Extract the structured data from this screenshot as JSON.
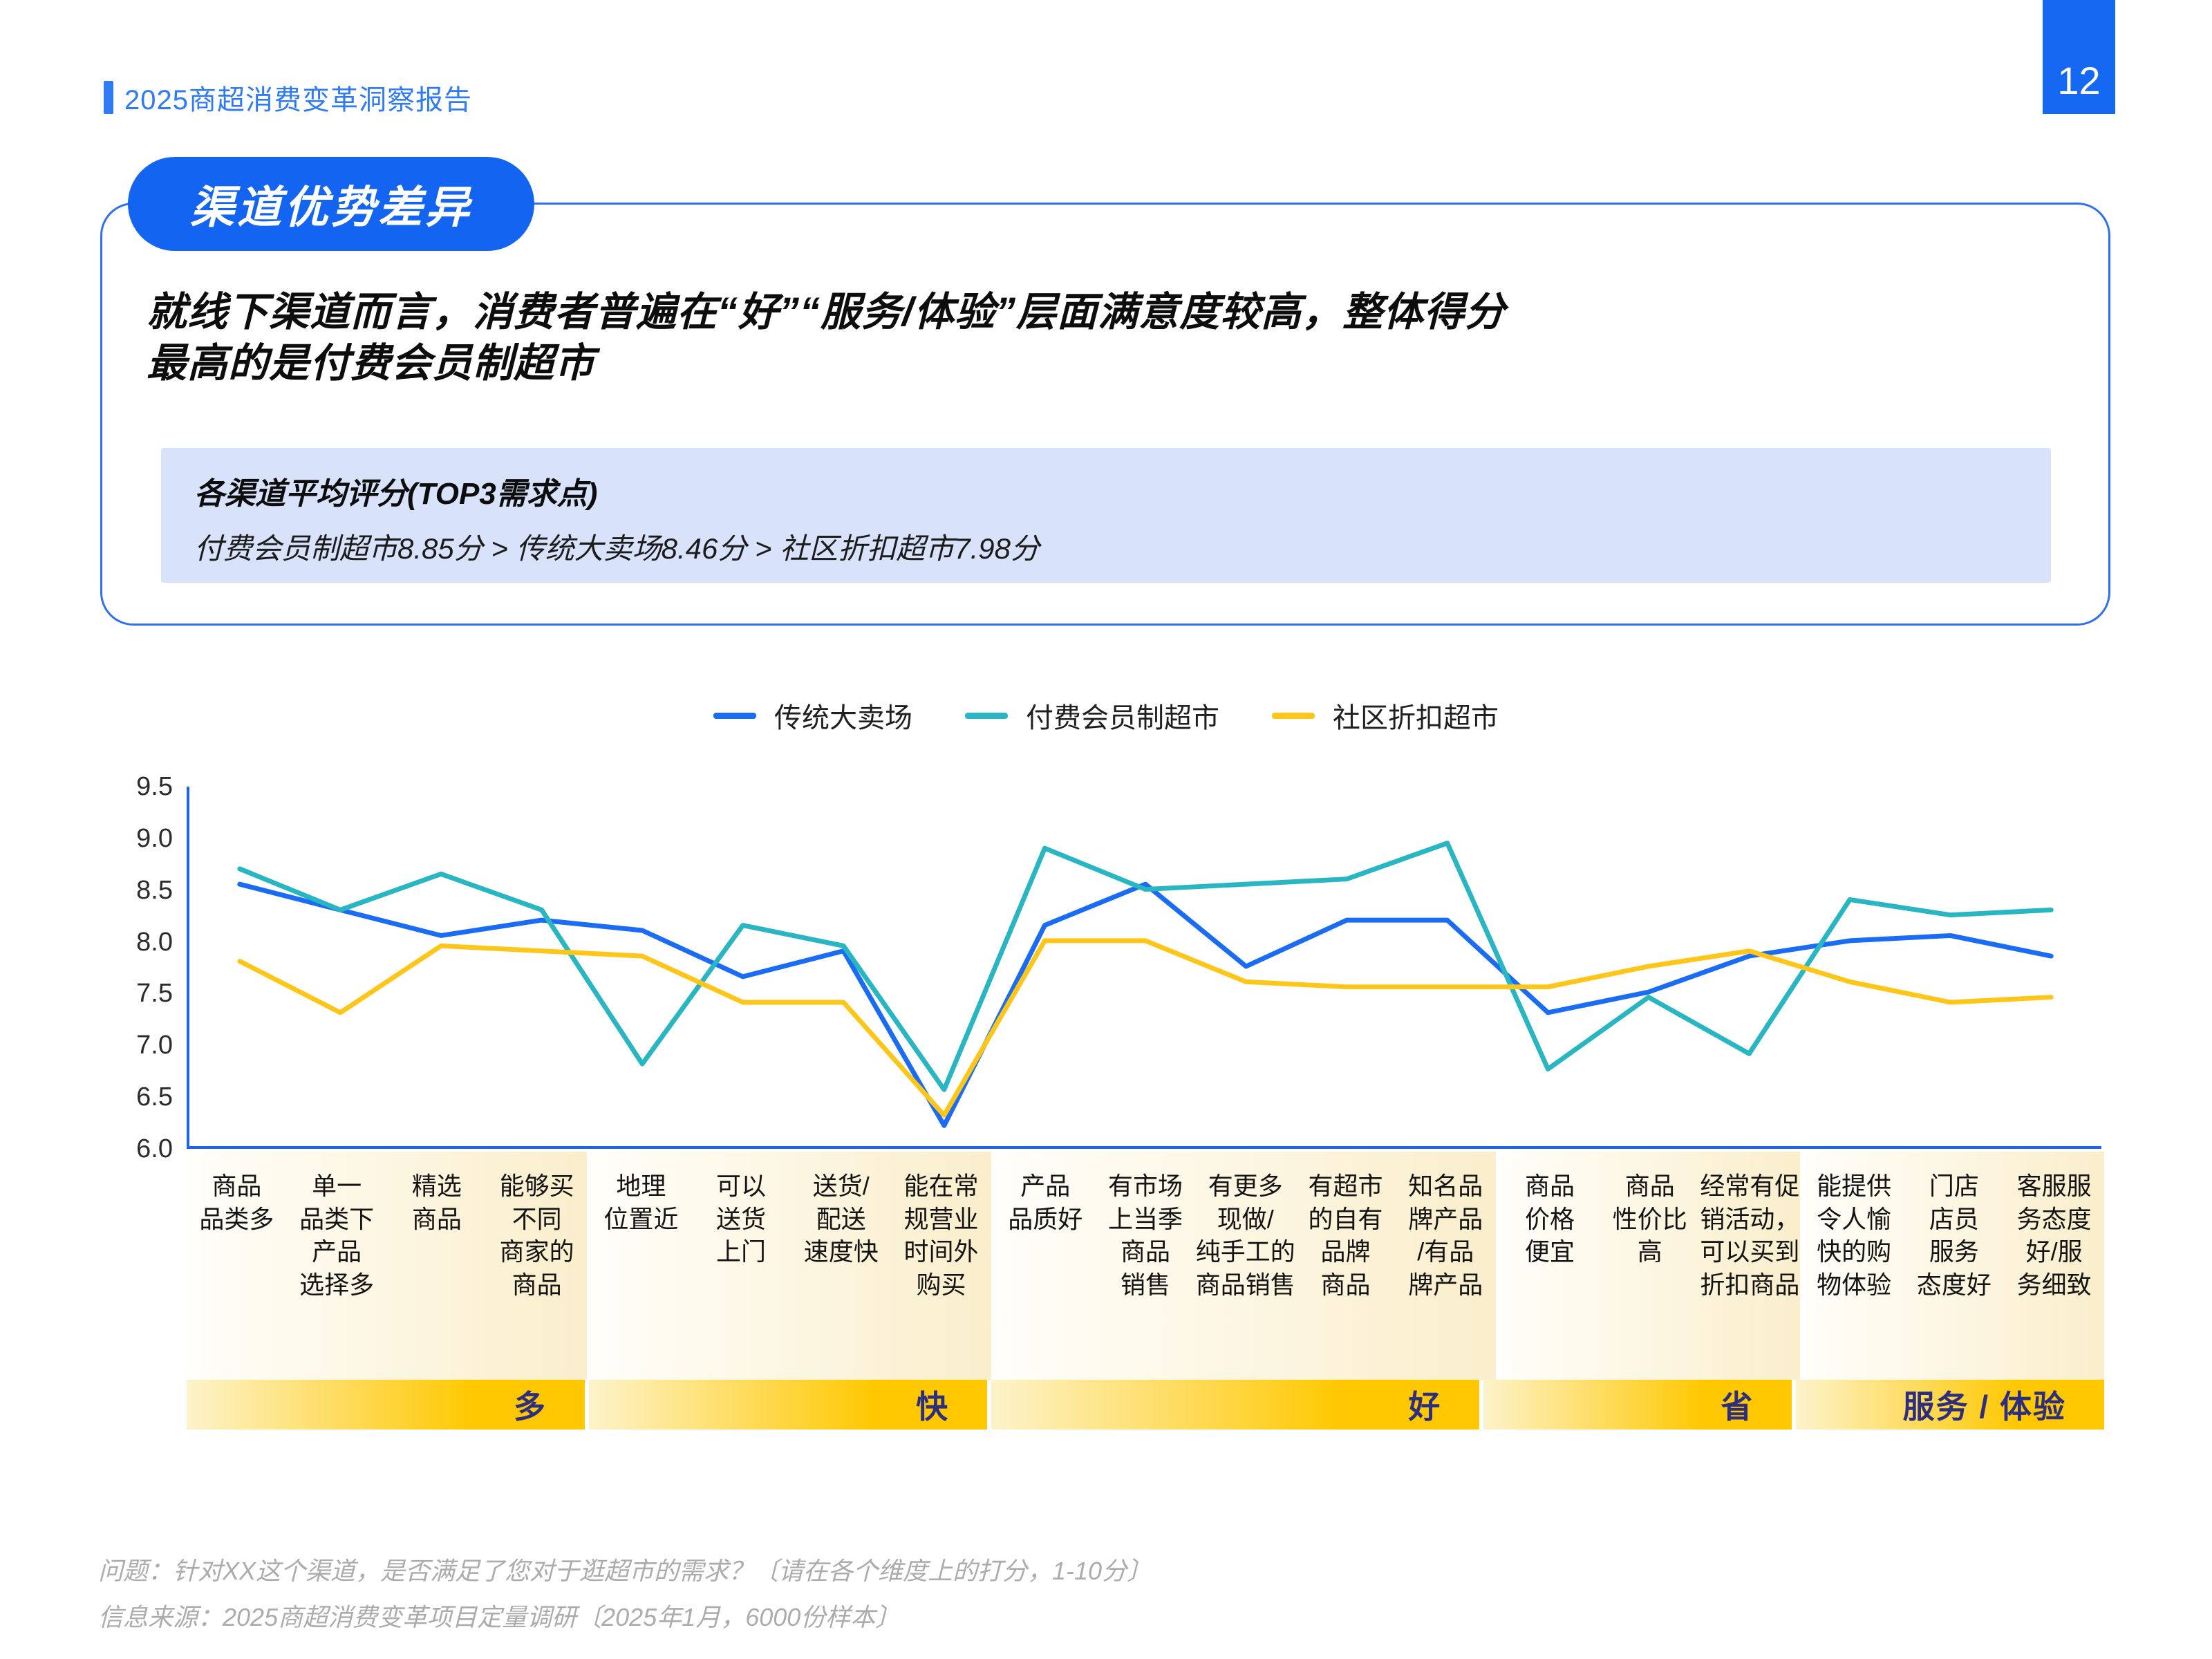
{
  "header": {
    "report_title": "2025商超消费变革洞察报告",
    "page_number": "12"
  },
  "section": {
    "tag": "渠道优势差异"
  },
  "main": {
    "headline": "就线下渠道而言，消费者普遍在“好”“服务/体验”层面满意度较高，整体得分\n最高的是付费会员制超市"
  },
  "highlight_box": {
    "title": "各渠道平均评分(TOP3需求点)",
    "content": "付费会员制超市8.85分 > 传统大卖场8.46分 > 社区折扣超市7.98分"
  },
  "footnotes": {
    "line1": "问题：针对XX这个渠道，是否满足了您对于逛超市的需求？〔请在各个维度上的打分，1-10分〕",
    "line2": "信息来源：2025商超消费变革项目定量调研〔2025年1月，6000份样本〕"
  },
  "colors": {
    "accent_blue": "#1565F2",
    "header_blue": "#2E7BF5",
    "card_border_blue": "#2E6FF2",
    "highlight_box_bg": "#D8E3FB",
    "axis_blue": "#1C63F1",
    "series_blue": "#1A6CF5",
    "series_teal": "#29B6C3",
    "series_yellow": "#FFC61A",
    "band_gold": "#FFC800",
    "band_label_navy": "#2D2F7E",
    "label_bg_cream": "#FAEECB",
    "footnote_gray": "#ACACAC"
  },
  "chart_data": {
    "type": "line",
    "title": "",
    "xlabel": "",
    "ylabel": "",
    "ylim": [
      6.0,
      9.5
    ],
    "y_ticks": [
      9.5,
      9.0,
      8.5,
      8.0,
      7.5,
      7.0,
      6.5,
      6.0
    ],
    "grid": false,
    "legend_position": "top-center",
    "categories": [
      "商品\n品类多",
      "单一\n品类下\n产品\n选择多",
      "精选\n商品",
      "能够买\n不同\n商家的\n商品",
      "地理\n位置近",
      "可以\n送货\n上门",
      "送货/\n配送\n速度快",
      "能在常\n规营业\n时间外\n购买",
      "产品\n品质好",
      "有市场\n上当季\n商品\n销售",
      "有更多\n现做/\n纯手工的\n商品销售",
      "有超市\n的自有\n品牌\n商品",
      "知名品\n牌产品\n/有品\n牌产品",
      "商品\n价格\n便宜",
      "商品\n性价比\n高",
      "经常有促\n销活动，\n可以买到\n折扣商品",
      "能提供\n令人愉\n快的购\n物体验",
      "门店\n店员\n服务\n态度好",
      "客服服\n务态度\n好/服\n务细致"
    ],
    "groups": [
      {
        "label": "多",
        "span": 4
      },
      {
        "label": "快",
        "span": 4
      },
      {
        "label": "好",
        "span": 5
      },
      {
        "label": "省",
        "span": 3
      },
      {
        "label": "服务 / 体验",
        "span": 3
      }
    ],
    "series": [
      {
        "name": "传统大卖场",
        "color": "#1A6CF5",
        "values": [
          8.55,
          8.3,
          8.05,
          8.2,
          8.1,
          7.65,
          7.9,
          6.2,
          8.15,
          8.55,
          7.75,
          8.2,
          8.2,
          7.3,
          7.5,
          7.85,
          8.0,
          8.05,
          7.85
        ]
      },
      {
        "name": "付费会员制超市",
        "color": "#29B6C3",
        "values": [
          8.7,
          8.3,
          8.65,
          8.3,
          6.8,
          8.15,
          7.95,
          6.55,
          8.9,
          8.5,
          8.55,
          8.6,
          8.95,
          6.75,
          7.45,
          6.9,
          8.4,
          8.25,
          8.3
        ]
      },
      {
        "name": "社区折扣超市",
        "color": "#FFC61A",
        "values": [
          7.8,
          7.3,
          7.95,
          7.9,
          7.85,
          7.4,
          7.4,
          6.3,
          8.0,
          8.0,
          7.6,
          7.55,
          7.55,
          7.55,
          7.75,
          7.9,
          7.6,
          7.4,
          7.45
        ]
      }
    ]
  }
}
